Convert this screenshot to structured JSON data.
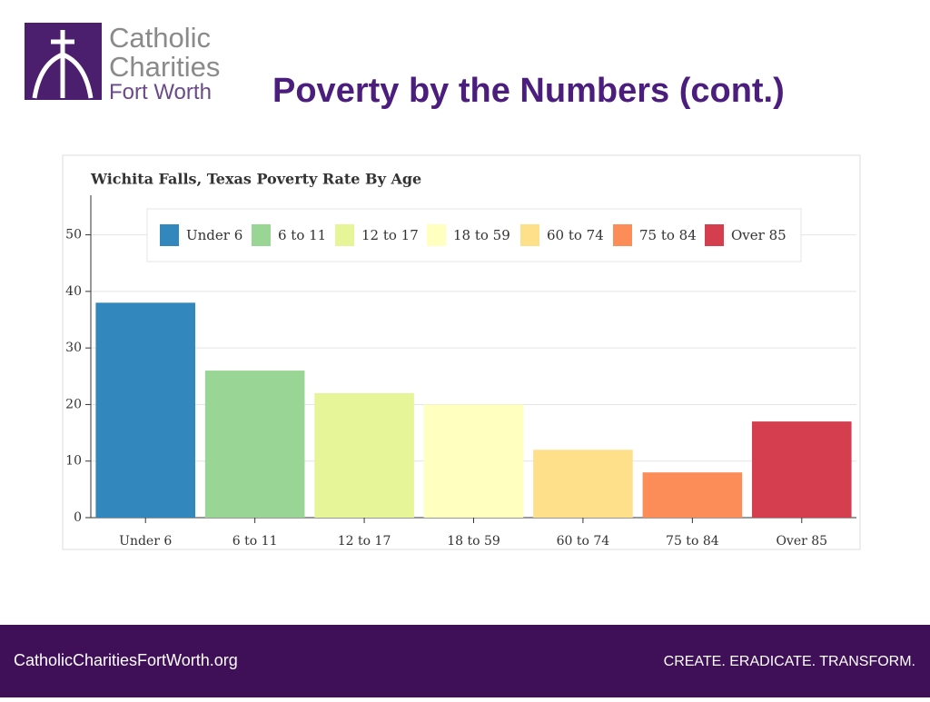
{
  "header": {
    "logo_lines": [
      "Catholic",
      "Charities",
      "Fort Worth"
    ],
    "title": "Poverty by the Numbers (cont.)"
  },
  "chart_data": {
    "type": "bar",
    "title": "Wichita Falls, Texas Poverty Rate By Age",
    "categories": [
      "Under 6",
      "6 to 11",
      "12 to 17",
      "18 to 59",
      "60 to 74",
      "75 to 84",
      "Over 85"
    ],
    "values": [
      38,
      26,
      22,
      20,
      12,
      8,
      17
    ],
    "colors": [
      "#3288bd",
      "#99d594",
      "#e6f598",
      "#ffffbf",
      "#fee08b",
      "#fc8d59",
      "#d53e4f"
    ],
    "ylim": [
      0,
      57
    ],
    "yticks": [
      0,
      10,
      20,
      30,
      40,
      50
    ],
    "grid": true,
    "legend": "top"
  },
  "footer": {
    "website": "CatholicCharitiesFortWorth.org",
    "tagline": "CREATE. ERADICATE. TRANSFORM."
  }
}
